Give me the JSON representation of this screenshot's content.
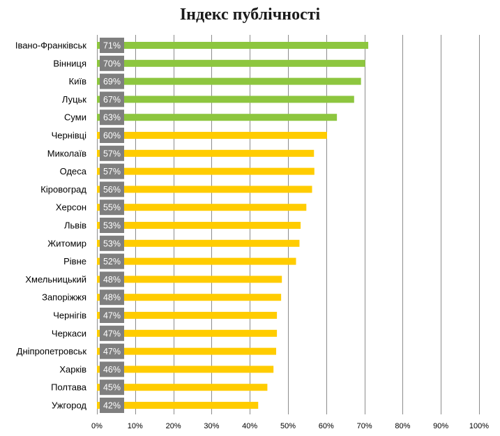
{
  "chart_data": {
    "type": "bar",
    "orientation": "horizontal",
    "title": "Індекс публічності",
    "categories": [
      "Івано-Франківськ",
      "Вінниця",
      "Київ",
      "Луцьк",
      "Суми",
      "Чернівці",
      "Миколаїв",
      "Одеса",
      "Кіровоград",
      "Херсон",
      "Львів",
      "Житомир",
      "Рівне",
      "Хмельницький",
      "Запоріжжя",
      "Чернігів",
      "Черкаси",
      "Дніпропетровськ",
      "Харків",
      "Полтава",
      "Ужгород"
    ],
    "values": [
      71.0,
      70.2,
      69.1,
      67.3,
      62.8,
      60.2,
      56.8,
      56.9,
      56.3,
      54.8,
      53.3,
      53.0,
      52.1,
      48.4,
      48.2,
      47.1,
      47.1,
      46.9,
      46.2,
      44.6,
      42.2
    ],
    "data_labels": [
      "71%",
      "70%",
      "69%",
      "67%",
      "63%",
      "60%",
      "57%",
      "57%",
      "56%",
      "55%",
      "53%",
      "53%",
      "52%",
      "48%",
      "48%",
      "47%",
      "47%",
      "47%",
      "46%",
      "45%",
      "42%"
    ],
    "xlim": [
      0,
      100
    ],
    "x_ticks": [
      "0%",
      "10%",
      "20%",
      "30%",
      "40%",
      "50%",
      "60%",
      "70%",
      "80%",
      "90%",
      "100%"
    ],
    "vertical_grid": true,
    "colors": {
      "top5": "#8dc63f",
      "rest": "#ffcc00",
      "label_box": "#7f7f7f",
      "gridline": "#8c8c8c"
    },
    "highlighted_count": 5
  }
}
